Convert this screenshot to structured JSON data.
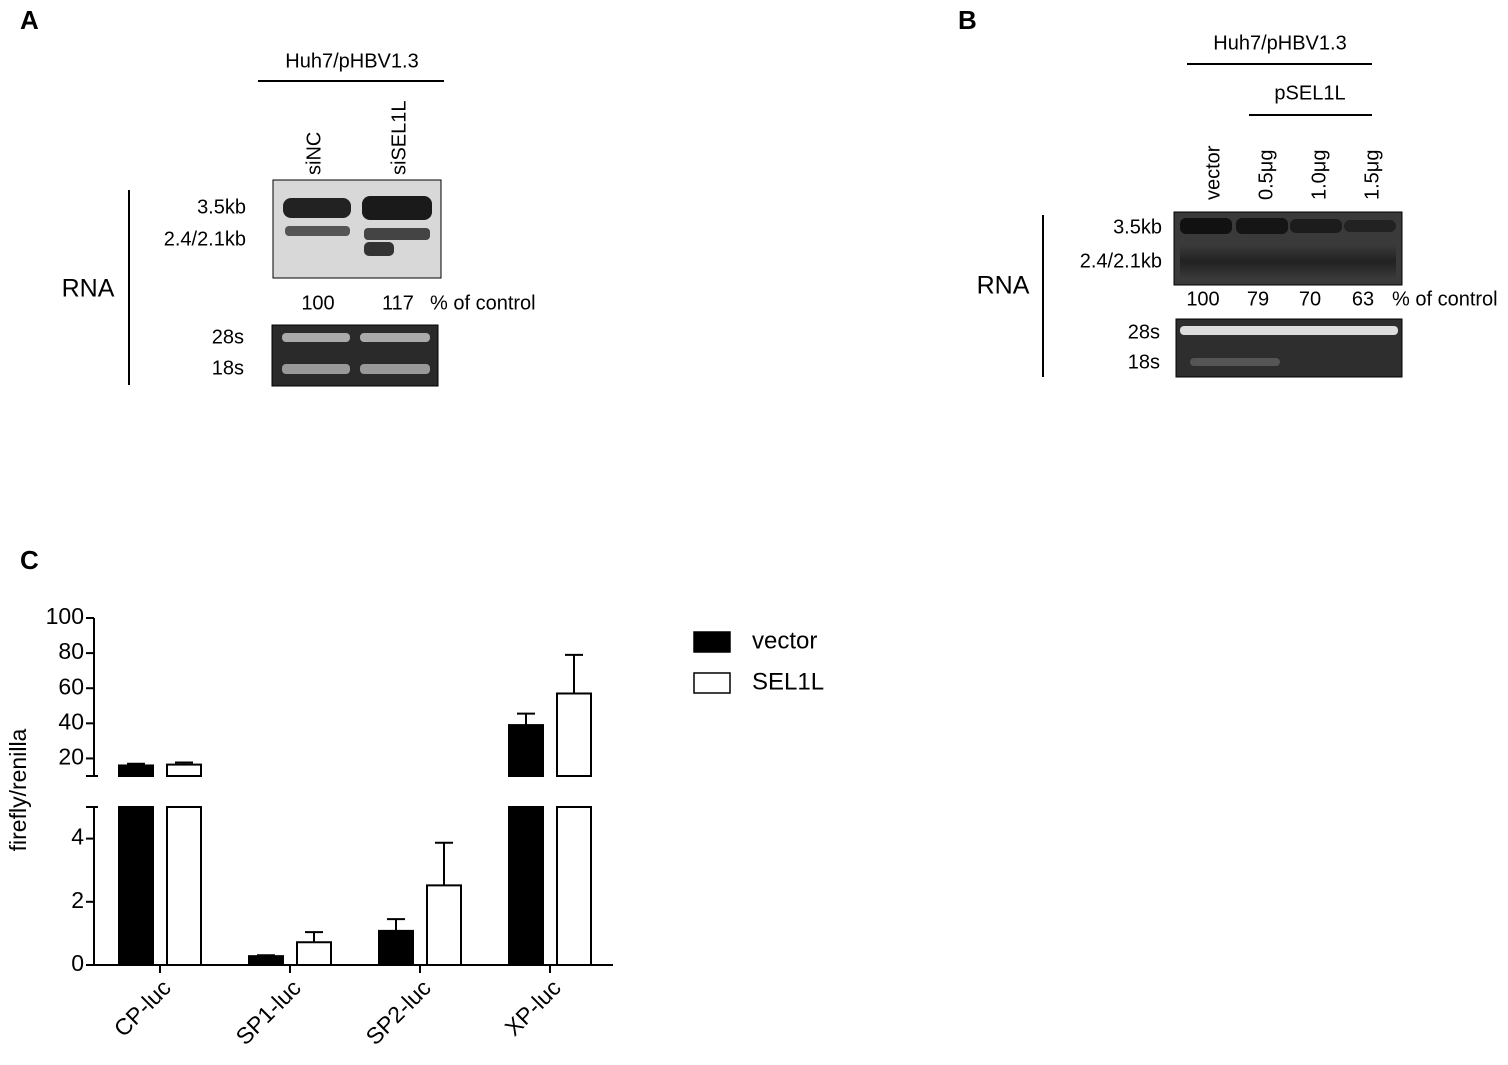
{
  "panel_a": {
    "label": "A",
    "header": "Huh7/pHBV1.3",
    "lanes": [
      "siNC",
      "siSEL1L"
    ],
    "bands_top": [
      "3.5kb",
      "2.4/2.1kb"
    ],
    "side_label": "RNA",
    "percents": [
      "100",
      "117"
    ],
    "percent_unit": "% of control",
    "bands_bottom": [
      "28s",
      "18s"
    ]
  },
  "panel_b": {
    "label": "B",
    "header": "Huh7/pHBV1.3",
    "subheader": "pSEL1L",
    "lanes": [
      "vector",
      "0.5μg",
      "1.0μg",
      "1.5μg"
    ],
    "bands_top": [
      "3.5kb",
      "2.4/2.1kb"
    ],
    "side_label": "RNA",
    "percents": [
      "100",
      "79",
      "70",
      "63"
    ],
    "percent_unit": "% of control",
    "bands_bottom": [
      "28s",
      "18s"
    ]
  },
  "chart_data": {
    "type": "bar",
    "label": "C",
    "ylabel": "firefly/renilla",
    "categories": [
      "CP-luc",
      "SP1-luc",
      "SP2-luc",
      "XP-luc"
    ],
    "series": [
      {
        "name": "vector",
        "color": "#000000",
        "values": [
          16,
          0.28,
          1.08,
          39
        ],
        "errors": [
          1,
          0.03,
          0.37,
          6.5
        ]
      },
      {
        "name": "SEL1L",
        "color": "#ffffff",
        "values": [
          16.5,
          0.72,
          2.52,
          57
        ],
        "errors": [
          1.2,
          0.32,
          1.35,
          22
        ]
      }
    ],
    "segments": [
      {
        "ylim": [
          0,
          5
        ],
        "yticks": [
          0,
          2,
          4
        ]
      },
      {
        "ylim": [
          10,
          100
        ],
        "yticks": [
          20,
          40,
          60,
          80,
          100
        ]
      }
    ]
  }
}
